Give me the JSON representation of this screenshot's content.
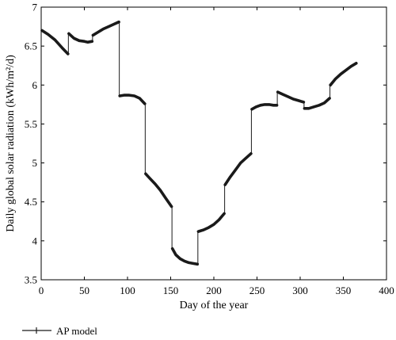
{
  "chart_data": {
    "type": "line",
    "title": "",
    "xlabel": "Day of the year",
    "ylabel": "Daily global solar radiation (kWh/m²/d)",
    "xlim": [
      0,
      400
    ],
    "ylim": [
      3.5,
      7
    ],
    "x_ticks": [
      0,
      50,
      100,
      150,
      200,
      250,
      300,
      350,
      400
    ],
    "y_ticks": [
      3.5,
      4,
      4.5,
      5,
      5.5,
      6,
      6.5,
      7
    ],
    "grid": false,
    "legend_position": "bottom-left, below plot",
    "series": [
      {
        "name": "AP model",
        "color": "#1a1a1a",
        "segments": [
          {
            "x": [
              1,
              8,
              16,
              24,
              31
            ],
            "y": [
              6.7,
              6.65,
              6.58,
              6.48,
              6.4
            ]
          },
          {
            "x": [
              32,
              38,
              44,
              50,
              54,
              59
            ],
            "y": [
              6.66,
              6.6,
              6.57,
              6.56,
              6.55,
              6.56
            ]
          },
          {
            "x": [
              60,
              66,
              72,
              78,
              84,
              90
            ],
            "y": [
              6.64,
              6.68,
              6.72,
              6.75,
              6.78,
              6.81
            ]
          },
          {
            "x": [
              91,
              96,
              102,
              108,
              114,
              120
            ],
            "y": [
              5.86,
              5.87,
              5.87,
              5.86,
              5.83,
              5.76
            ]
          },
          {
            "x": [
              121,
              126,
              132,
              138,
              144,
              151
            ],
            "y": [
              4.86,
              4.8,
              4.73,
              4.65,
              4.55,
              4.44
            ]
          },
          {
            "x": [
              152,
              156,
              161,
              166,
              171,
              176,
              181
            ],
            "y": [
              3.9,
              3.82,
              3.77,
              3.74,
              3.72,
              3.71,
              3.7
            ]
          },
          {
            "x": [
              182,
              188,
              194,
              200,
              206,
              212
            ],
            "y": [
              4.12,
              4.14,
              4.17,
              4.21,
              4.27,
              4.35
            ]
          },
          {
            "x": [
              213,
              219,
              225,
              231,
              237,
              243
            ],
            "y": [
              4.72,
              4.82,
              4.91,
              5.0,
              5.06,
              5.12
            ]
          },
          {
            "x": [
              244,
              249,
              254,
              259,
              264,
              269,
              273
            ],
            "y": [
              5.69,
              5.72,
              5.74,
              5.75,
              5.75,
              5.74,
              5.74
            ]
          },
          {
            "x": [
              274,
              280,
              286,
              292,
              298,
              304
            ],
            "y": [
              5.91,
              5.88,
              5.85,
              5.82,
              5.8,
              5.78
            ]
          },
          {
            "x": [
              305,
              310,
              316,
              322,
              328,
              334
            ],
            "y": [
              5.7,
              5.7,
              5.72,
              5.74,
              5.77,
              5.83
            ]
          },
          {
            "x": [
              335,
              341,
              347,
              353,
              359,
              365
            ],
            "y": [
              6.0,
              6.08,
              6.14,
              6.19,
              6.24,
              6.28
            ]
          }
        ]
      }
    ]
  }
}
